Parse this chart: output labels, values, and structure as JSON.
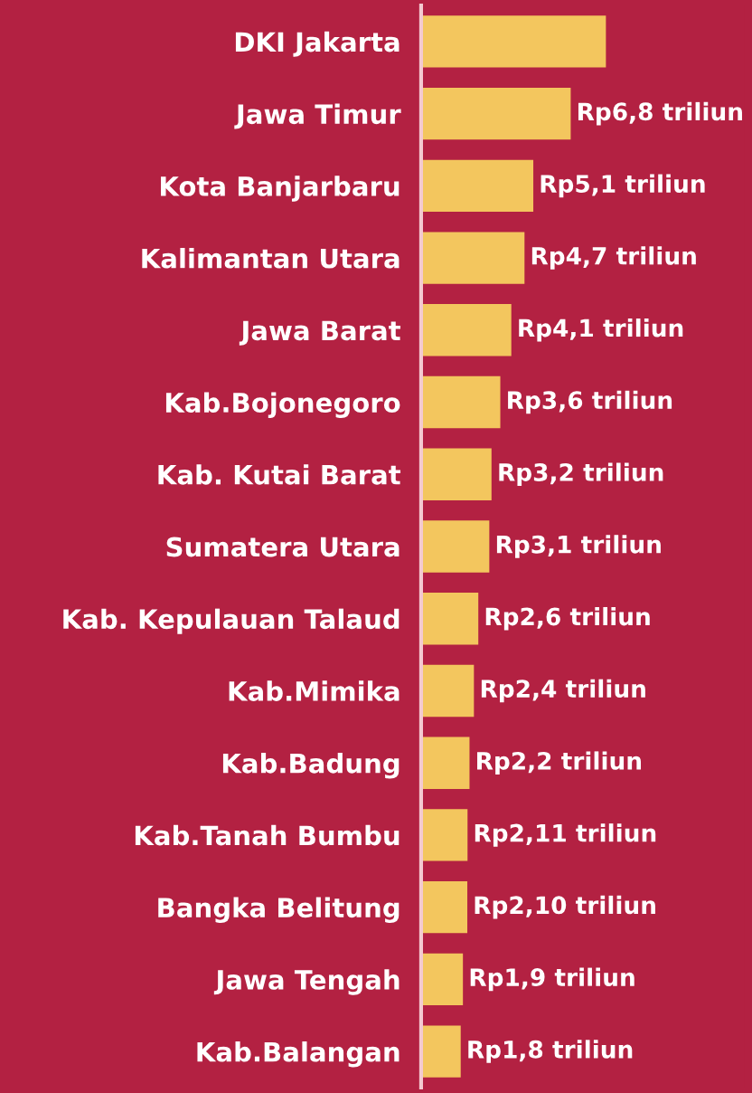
{
  "chart_data": {
    "type": "bar",
    "orientation": "horizontal",
    "tick_labels": "y",
    "grid": false,
    "legend": false,
    "categories": [
      "DKI Jakarta",
      "Jawa Timur",
      "Kota Banjarbaru",
      "Kalimantan Utara",
      "Jawa Barat",
      "Kab.Bojonegoro",
      "Kab. Kutai Barat",
      "Sumatera Utara",
      "Kab. Kepulauan Talaud",
      "Kab.Mimika",
      "Kab.Badung",
      "Kab.Tanah Bumbu",
      "Bangka Belitung",
      "Jawa Tengah",
      "Kab.Balangan"
    ],
    "values": [
      8.4,
      6.8,
      5.1,
      4.7,
      4.1,
      3.6,
      3.2,
      3.1,
      2.6,
      2.4,
      2.2,
      2.11,
      2.1,
      1.9,
      1.8
    ],
    "value_labels": [
      null,
      "Rp6,8 triliun",
      "Rp5,1 triliun",
      "Rp4,7 triliun",
      "Rp4,1 triliun",
      "Rp3,6 triliun",
      "Rp3,2 triliun",
      "Rp3,1 triliun",
      "Rp2,6 triliun",
      "Rp2,4 triliun",
      "Rp2,2 triliun",
      "Rp2,11 triliun",
      "Rp2,10 triliun",
      "Rp1,9 triliun",
      "Rp1,8 triliun"
    ],
    "color": "#f3c65e"
  }
}
